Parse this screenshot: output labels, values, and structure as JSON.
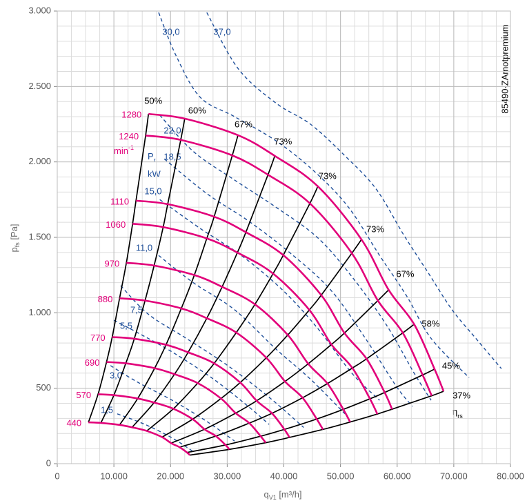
{
  "chart_data": {
    "type": "line",
    "x_label": [
      "q",
      "V1",
      " [m³/h]"
    ],
    "y_label": [
      "p",
      "fs",
      " [Pa]"
    ],
    "xlim": [
      0,
      80000
    ],
    "ylim": [
      0,
      3000
    ],
    "xticks": [
      0,
      {
        "value": 10000,
        "label": "10.000"
      },
      {
        "value": 20000,
        "label": "20.000"
      },
      {
        "value": 30000,
        "label": "30.000"
      },
      {
        "value": 40000,
        "label": "40.000"
      },
      {
        "value": 50000,
        "label": "50.000"
      },
      {
        "value": 60000,
        "label": "60.000"
      },
      {
        "value": 70000,
        "label": "70.000"
      },
      {
        "value": 80000,
        "label": "80.000"
      }
    ],
    "yticks": [
      0,
      500,
      {
        "value": 1000,
        "label": "1.000"
      },
      {
        "value": 1500,
        "label": "1.500"
      },
      {
        "value": 2000,
        "label": "2.000"
      },
      {
        "value": 2500,
        "label": "2.500"
      },
      {
        "value": 3000,
        "label": "3.000"
      }
    ],
    "grid": true,
    "grid_minor": {
      "x": 2500,
      "y": 100
    },
    "colors": {
      "speed": "#e2007a",
      "efficiency": "#000000",
      "power": "#1f4f9a"
    },
    "annotation": "85490-ZAmotpremium",
    "speed_unit": [
      "min",
      "-1"
    ],
    "power_unit": [
      "P",
      "r"
    ],
    "power_unit2": "kW",
    "efficiency_symbol": [
      "η",
      "rs"
    ],
    "speed_curves": [
      {
        "name": "440",
        "x": [
          5500,
          7700,
          11000,
          13200,
          15800,
          18500,
          20100,
          21600,
          22900,
          23400
        ],
        "values": [
          274,
          270,
          257,
          241,
          217,
          176,
          136,
          109,
          74,
          57
        ]
      },
      {
        "name": "570",
        "x": [
          7200,
          10000,
          14200,
          17100,
          20500,
          23900,
          26000,
          28000,
          29700,
          30400
        ],
        "values": [
          460,
          454,
          432,
          405,
          364,
          295,
          228,
          183,
          124,
          95
        ]
      },
      {
        "name": "690",
        "x": [
          8700,
          12100,
          17200,
          20700,
          24800,
          28900,
          31500,
          33900,
          35900,
          36800
        ],
        "values": [
          674,
          665,
          633,
          593,
          534,
          432,
          335,
          269,
          182,
          139
        ]
      },
      {
        "name": "770",
        "x": [
          9700,
          13600,
          19200,
          23100,
          27700,
          32300,
          35200,
          37900,
          40100,
          41000
        ],
        "values": [
          839,
          828,
          788,
          738,
          665,
          538,
          417,
          334,
          227,
          174
        ]
      },
      {
        "name": "880",
        "x": [
          11000,
          15500,
          21900,
          26400,
          31600,
          36900,
          40200,
          43300,
          45800,
          46900
        ],
        "values": [
          1096,
          1081,
          1029,
          964,
          869,
          702,
          545,
          437,
          296,
          227
        ]
      },
      {
        "name": "970",
        "x": [
          12200,
          17100,
          24200,
          29100,
          34900,
          40700,
          44300,
          47700,
          50500,
          51700
        ],
        "values": [
          1331,
          1313,
          1250,
          1172,
          1056,
          853,
          662,
          531,
          360,
          276
        ]
      },
      {
        "name": "1060",
        "x": [
          13300,
          18700,
          26400,
          31800,
          38100,
          44500,
          48400,
          52100,
          55200,
          56500
        ],
        "values": [
          1590,
          1568,
          1493,
          1399,
          1260,
          1019,
          790,
          634,
          430,
          329
        ]
      },
      {
        "name": "1110",
        "x": [
          13900,
          19500,
          27700,
          33300,
          39900,
          46600,
          50700,
          54600,
          57800,
          59100
        ],
        "values": [
          1743,
          1720,
          1637,
          1534,
          1382,
          1117,
          866,
          695,
          472,
          361
        ]
      },
      {
        "name": "1240",
        "x": [
          15600,
          21800,
          30900,
          37200,
          44600,
          52000,
          56600,
          61000,
          64500,
          66100
        ],
        "values": [
          2175,
          2146,
          2043,
          1915,
          1725,
          1395,
          1081,
          867,
          588,
          450
        ]
      },
      {
        "name": "1280",
        "x": [
          16100,
          22500,
          31900,
          38400,
          46000,
          53700,
          58500,
          63000,
          66600,
          68200
        ],
        "values": [
          2318,
          2287,
          2177,
          2040,
          1838,
          1486,
          1152,
          924,
          627,
          480
        ]
      }
    ],
    "efficiency": [
      "50%",
      "60%",
      "67%",
      "73%",
      "73%",
      "73%",
      "67%",
      "58%",
      "45%",
      "37%"
    ],
    "power_curves": [
      {
        "name": "1,5",
        "x": [
          10600,
          15500,
          20300,
          24000
        ],
        "values": [
          330,
          260,
          170,
          80
        ]
      },
      {
        "name": "3,0",
        "x": [
          9400,
          14200,
          20300,
          26400,
          31300
        ],
        "values": [
          650,
          540,
          420,
          280,
          150
        ]
      },
      {
        "name": "5,5",
        "x": [
          10000,
          13600,
          20300,
          27600,
          33700,
          37400
        ],
        "values": [
          950,
          880,
          740,
          560,
          380,
          260
        ]
      },
      {
        "name": "7,5",
        "x": [
          11200,
          16100,
          22800,
          30100,
          37400,
          43500
        ],
        "values": [
          1180,
          990,
          830,
          650,
          440,
          240
        ]
      },
      {
        "name": "11,0",
        "x": [
          17900,
          24000,
          31300,
          38600,
          44700,
          50800
        ],
        "values": [
          1380,
          1200,
          1020,
          760,
          560,
          330
        ]
      },
      {
        "name": "15,0",
        "x": [
          18100,
          25200,
          32500,
          39800,
          45900,
          52000,
          56900
        ],
        "values": [
          1750,
          1560,
          1380,
          1150,
          900,
          600,
          420
        ]
      },
      {
        "name": "18,5",
        "x": [
          18900,
          26400,
          33700,
          41000,
          48300,
          54400,
          59900,
          62700
        ],
        "values": [
          2020,
          1790,
          1610,
          1400,
          1150,
          830,
          510,
          380
        ]
      },
      {
        "name": "22,0",
        "x": [
          18100,
          24000,
          31300,
          38600,
          45900,
          52000,
          58100,
          63000,
          66000
        ],
        "values": [
          2310,
          2070,
          1880,
          1700,
          1500,
          1240,
          920,
          600,
          420
        ]
      },
      {
        "name": "30,0",
        "x": [
          17900,
          20900,
          25200,
          31300,
          38600,
          45300,
          51400,
          56900,
          61700,
          66000,
          72700
        ],
        "values": [
          2990,
          2710,
          2430,
          2300,
          2140,
          1940,
          1700,
          1380,
          1110,
          830,
          570
        ]
      },
      {
        "name": "37,0",
        "x": [
          26400,
          31900,
          38600,
          44700,
          50800,
          56300,
          61100,
          65400,
          69700,
          73900,
          78400
        ],
        "values": [
          2990,
          2620,
          2390,
          2250,
          2040,
          1820,
          1520,
          1270,
          1020,
          830,
          630
        ]
      }
    ]
  }
}
